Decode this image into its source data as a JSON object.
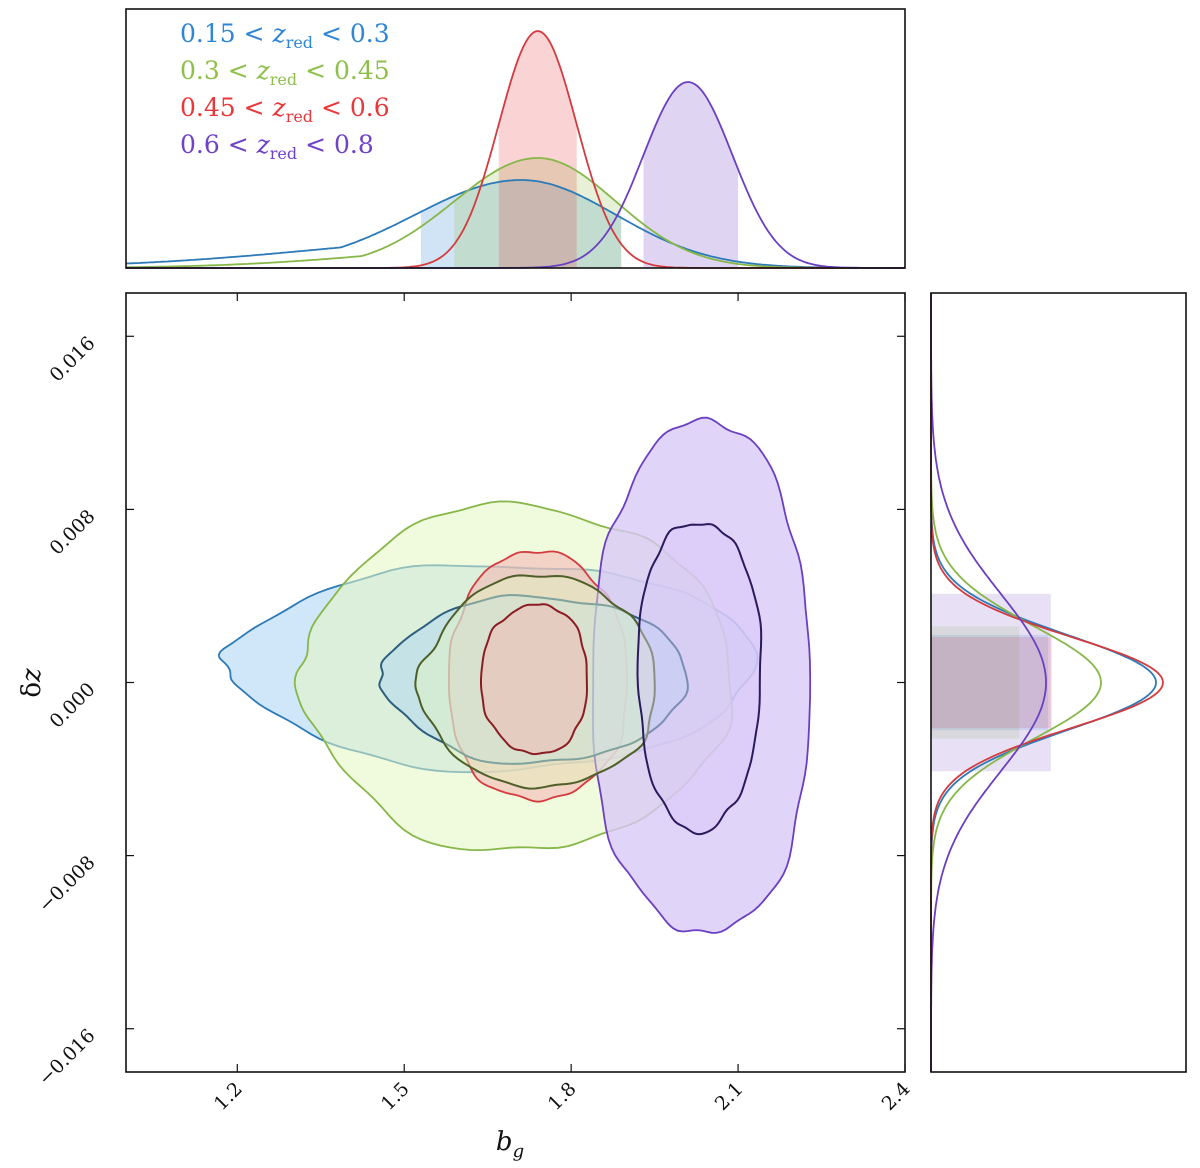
{
  "chart_data": {
    "type": "contour",
    "xlabel": "b_g",
    "ylabel": "δz",
    "xlim": [
      1.0,
      2.4
    ],
    "ylim": [
      -0.018,
      0.018
    ],
    "xticks": [
      1.2,
      1.5,
      1.8,
      2.1,
      2.4
    ],
    "xtick_labels": [
      "1.2",
      "1.5",
      "1.8",
      "2.1",
      "2.4"
    ],
    "yticks": [
      -0.016,
      -0.008,
      0.0,
      0.008,
      0.016
    ],
    "ytick_labels": [
      "−0.016",
      "−0.008",
      "0.000",
      "0.008",
      "0.016"
    ],
    "legend_placement": "top-left of top panel",
    "series": [
      {
        "name": "0.15 < z_red < 0.3",
        "legend": {
          "lo": "0.15",
          "hi": "0.3"
        },
        "color": "#2f86d6",
        "fill_color": "#aad4f5",
        "line_color": "#2d7ab8",
        "inner_line_color": "#2e5f80",
        "bg_mean": 1.71,
        "bg_sigma_left": 0.19,
        "bg_sigma_right": 0.17,
        "bg_68_interval": [
          1.53,
          1.89
        ],
        "dz_mean": 0.0,
        "dz_sigma": 0.0022,
        "contour_68": {
          "bg_range": [
            1.45,
            2.0
          ],
          "dz_range": [
            -0.0037,
            0.004
          ]
        },
        "contour_95": {
          "bg_range": [
            1.17,
            2.12
          ],
          "dz_range": [
            -0.004,
            0.0055
          ]
        }
      },
      {
        "name": "0.3 < z_red < 0.45",
        "legend": {
          "lo": "0.3",
          "hi": "0.45"
        },
        "color": "#8dbf4a",
        "fill_color": "#e4f5bf",
        "line_color": "#86b748",
        "inner_line_color": "#4f5f28",
        "bg_mean": 1.74,
        "bg_sigma_left": 0.15,
        "bg_sigma_right": 0.14,
        "bg_68_interval": [
          1.59,
          1.89
        ],
        "dz_mean": 0.0,
        "dz_sigma": 0.0026,
        "contour_68": {
          "bg_range": [
            1.52,
            1.95
          ],
          "dz_range": [
            -0.0049,
            0.0049
          ]
        },
        "contour_95": {
          "bg_range": [
            1.3,
            2.08
          ],
          "dz_range": [
            -0.0078,
            0.0082
          ]
        }
      },
      {
        "name": "0.45 < z_red < 0.6",
        "legend": {
          "lo": "0.45",
          "hi": "0.6"
        },
        "color": "#e8383a",
        "fill_color": "#f4b3b3",
        "line_color": "#d43b3f",
        "inner_line_color": "#8b1c22",
        "bg_mean": 1.74,
        "bg_sigma_left": 0.07,
        "bg_sigma_right": 0.07,
        "bg_68_interval": [
          1.67,
          1.81
        ],
        "dz_mean": 0.0,
        "dz_sigma": 0.0021,
        "contour_68": {
          "bg_range": [
            1.64,
            1.83
          ],
          "dz_range": [
            -0.0033,
            0.0036
          ]
        },
        "contour_95": {
          "bg_range": [
            1.58,
            1.9
          ],
          "dz_range": [
            -0.0055,
            0.006
          ]
        }
      },
      {
        "name": "0.6 < z_red < 0.8",
        "legend": {
          "lo": "0.6",
          "hi": "0.8"
        },
        "color": "#6f42c8",
        "fill_color": "#d8c8f7",
        "line_color": "#6a3fc1",
        "inner_line_color": "#2a1a5e",
        "bg_mean": 2.01,
        "bg_sigma_left": 0.08,
        "bg_sigma_right": 0.08,
        "bg_68_interval": [
          1.93,
          2.1
        ],
        "dz_mean": 0.0,
        "dz_sigma": 0.0041,
        "contour_68": {
          "bg_range": [
            1.92,
            2.14
          ],
          "dz_range": [
            -0.0068,
            0.0075
          ]
        },
        "contour_95": {
          "bg_range": [
            1.84,
            2.23
          ],
          "dz_range": [
            -0.0117,
            0.012
          ]
        }
      }
    ]
  }
}
